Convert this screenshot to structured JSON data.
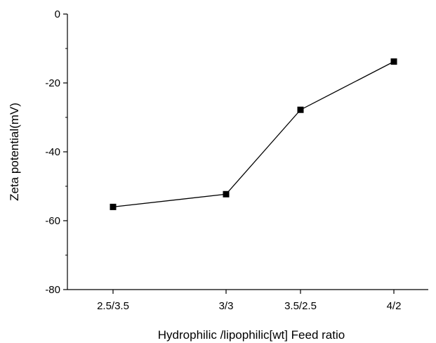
{
  "chart_data": {
    "type": "line",
    "title": "",
    "xlabel": "Hydrophilic /lipophilic[wt] Feed ratio",
    "ylabel": "Zeta potential(mV)",
    "categories": [
      "2.5/3.5",
      "3/3",
      "3.5/2.5",
      "4/2"
    ],
    "series": [
      {
        "values": [
          -56,
          -52.3,
          -27.8,
          -13.8
        ]
      }
    ],
    "ylim": [
      -80,
      0
    ],
    "yticks": [
      "0",
      "-20",
      "-40",
      "-60",
      "-80"
    ],
    "grid": false,
    "legend": "none",
    "marker": "square",
    "line_color": "#000000"
  }
}
